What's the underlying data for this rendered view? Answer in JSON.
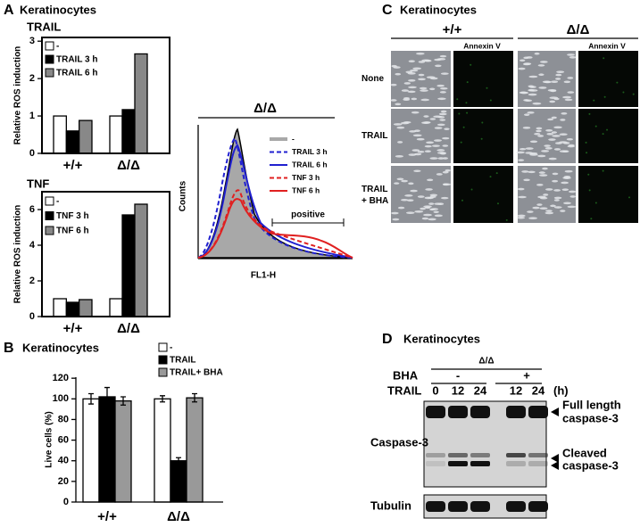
{
  "panels": {
    "A": {
      "letter": "A",
      "title": "Keratinocytes"
    },
    "B": {
      "letter": "B",
      "title": "Keratinocytes"
    },
    "C": {
      "letter": "C",
      "title": "Keratinocytes",
      "columns": [
        "+/+",
        "Δ/Δ"
      ],
      "channel": "Annexin V",
      "rows": [
        "None",
        "TRAIL",
        "TRAIL\n+ BHA"
      ]
    },
    "D": {
      "letter": "D",
      "title": "Keratinocytes",
      "genotype": "Δ/Δ",
      "bha_label": "BHA",
      "bha": [
        "-",
        "+"
      ],
      "trail_label": "TRAIL",
      "lanes": [
        0,
        12,
        24,
        12,
        24
      ],
      "unit": "(h)",
      "blot1": "Caspase-3",
      "blot2": "Tubulin",
      "band_full": [
        "Full length",
        "caspase-3"
      ],
      "band_cleaved": [
        "Cleaved",
        "caspase-3"
      ]
    }
  },
  "flow": {
    "title": "Δ/Δ",
    "y_label": "Counts",
    "x_label": "FL1-H",
    "annotation": "positive",
    "legend": [
      {
        "name": "-",
        "color": "#a8a8a8"
      },
      {
        "name": "TRAIL 3 h",
        "color": "#2020d0"
      },
      {
        "name": "TRAIL 6 h",
        "color": "#2020d0"
      },
      {
        "name": "TNF 3 h",
        "color": "#e02020"
      },
      {
        "name": "TNF 6 h",
        "color": "#e02020"
      }
    ]
  },
  "chart_data": [
    {
      "type": "bar",
      "title": "TRAIL",
      "y_label": "Relative ROS induction",
      "categories": [
        "+/+",
        "Δ/Δ"
      ],
      "series": [
        {
          "name": "-",
          "color": "#ffffff",
          "values": [
            1.0,
            1.0
          ]
        },
        {
          "name": "TRAIL 3 h",
          "color": "#000000",
          "values": [
            0.6,
            1.17
          ]
        },
        {
          "name": "TRAIL 6 h",
          "color": "#888888",
          "values": [
            0.88,
            2.66
          ]
        }
      ],
      "ylim": [
        0,
        3.1
      ],
      "yticks": [
        0,
        1,
        2,
        3
      ]
    },
    {
      "type": "bar",
      "title": "TNF",
      "y_label": "Relative ROS induction",
      "categories": [
        "+/+",
        "Δ/Δ"
      ],
      "series": [
        {
          "name": "-",
          "color": "#ffffff",
          "values": [
            1.0,
            1.0
          ]
        },
        {
          "name": "TNF 3 h",
          "color": "#000000",
          "values": [
            0.8,
            5.7
          ]
        },
        {
          "name": "TNF 6 h",
          "color": "#888888",
          "values": [
            0.95,
            6.3
          ]
        }
      ],
      "ylim": [
        0,
        7
      ],
      "yticks": [
        0,
        2,
        4,
        6
      ]
    },
    {
      "type": "bar",
      "y_label": "Live cells (%)",
      "categories": [
        "+/+",
        "Δ/Δ"
      ],
      "series": [
        {
          "name": "-",
          "color": "#ffffff",
          "values": [
            100,
            100
          ],
          "errors": [
            5,
            3
          ]
        },
        {
          "name": "TRAIL",
          "color": "#000000",
          "values": [
            102,
            40
          ],
          "errors": [
            9,
            3
          ]
        },
        {
          "name": "TRAIL+ BHA",
          "color": "#999999",
          "values": [
            98,
            101
          ],
          "errors": [
            4,
            4
          ]
        }
      ],
      "ylim": [
        0,
        121
      ],
      "yticks": [
        0,
        20,
        40,
        60,
        80,
        100,
        120
      ]
    }
  ]
}
